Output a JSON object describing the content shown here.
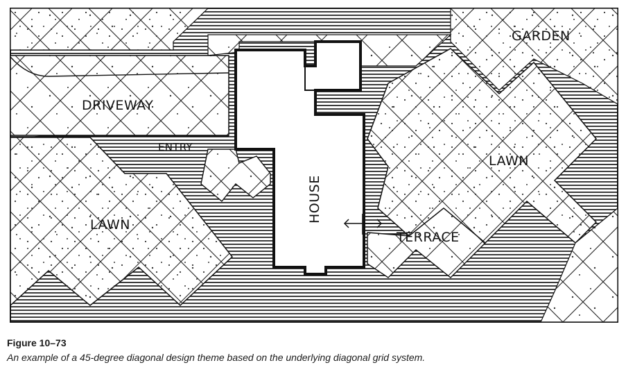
{
  "labels": {
    "garden": "GARDEN",
    "driveway": "DRIVEWAY",
    "entry": "ENTRY",
    "lawn_left": "LAWN",
    "lawn_right": "LAWN",
    "house": "HOUSE",
    "terrace": "TERRACE"
  },
  "figure": {
    "label": "Figure 10–73",
    "caption": "An example of a 45-degree diagonal design theme based on the underlying diagonal grid system."
  }
}
